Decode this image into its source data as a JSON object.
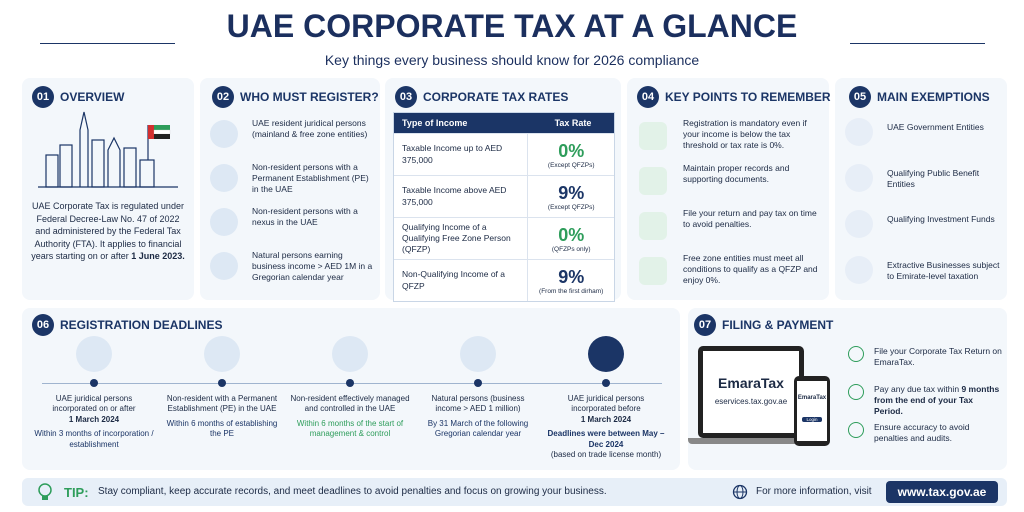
{
  "header": {
    "title": "UAE CORPORATE TAX AT A GLANCE",
    "subtitle": "Key things every business should know for 2026 compliance"
  },
  "overview": {
    "number": "01",
    "title": "OVERVIEW",
    "text": "UAE Corporate Tax is regulated under Federal Decree-Law No. 47 of 2022 and administered by the Federal Tax Authority (FTA). It applies to financial years starting on or after",
    "bold": "1 June 2023."
  },
  "register": {
    "number": "02",
    "title": "WHO MUST REGISTER?",
    "items": [
      "UAE resident juridical persons (mainland & free zone entities)",
      "Non-resident persons with a Permanent Establishment (PE) in the UAE",
      "Non-resident persons with a nexus in the UAE",
      "Natural persons earning business income > AED 1M in a Gregorian calendar year"
    ]
  },
  "rates": {
    "number": "03",
    "title": "CORPORATE TAX RATES",
    "headers": [
      "Type of Income",
      "Tax Rate"
    ],
    "rows": [
      {
        "income": "Taxable Income up to AED 375,000",
        "rate": "0%",
        "note": "(Except QFZPs)"
      },
      {
        "income": "Taxable Income above AED 375,000",
        "rate": "9%",
        "note": "(Except QFZPs)"
      },
      {
        "income": "Qualifying Income of a Qualifying Free Zone Person (QFZP)",
        "rate": "0%",
        "note": "(QFZPs only)"
      },
      {
        "income": "Non-Qualifying Income of a QFZP",
        "rate": "9%",
        "note": "(From the first dirham)"
      }
    ]
  },
  "key_points": {
    "number": "04",
    "title": "KEY POINTS TO REMEMBER",
    "items": [
      "Registration is mandatory even if your income is below the tax threshold or tax rate is 0%.",
      "Maintain proper records and supporting documents.",
      "File your return and pay tax on time to avoid penalties.",
      "Free zone entities must meet all conditions to qualify as a QFZP and enjoy 0%."
    ]
  },
  "exemptions": {
    "number": "05",
    "title": "MAIN EXEMPTIONS",
    "items": [
      "UAE Government Entities",
      "Qualifying Public Benefit Entities",
      "Qualifying Investment Funds",
      "Extractive Businesses subject to Emirate-level taxation"
    ]
  },
  "deadlines": {
    "number": "06",
    "title": "REGISTRATION DEADLINES",
    "items": [
      {
        "who": "UAE juridical persons incorporated on or after",
        "date": "1 March 2024",
        "deadline": "Within 3 months of incorporation / establishment"
      },
      {
        "who": "Non-resident with a Permanent Establishment (PE) in the UAE",
        "deadline": "Within 6 months of establishing the PE"
      },
      {
        "who": "Non-resident effectively managed and controlled in the UAE",
        "deadline": "Within 6 months of the start of management & control"
      },
      {
        "who": "Natural persons (business income > AED 1 million)",
        "deadline": "By 31 March of the following Gregorian calendar year"
      },
      {
        "who": "UAE juridical persons incorporated before",
        "date": "1 March 2024",
        "deadline": "Deadlines were between May – Dec 2024",
        "note": "(based on trade license month)"
      }
    ]
  },
  "filing": {
    "number": "07",
    "title": "FILING & PAYMENT",
    "brand": "EmaraTax",
    "site": "eservices.tax.gov.ae",
    "phone_brand": "EmaraTax",
    "login": "Login",
    "items": [
      {
        "text": "File your Corporate Tax Return on EmaraTax."
      },
      {
        "text": "Pay any due tax within",
        "bold": "9 months from the end of your Tax Period."
      },
      {
        "text": "Ensure accuracy to avoid penalties and audits."
      }
    ]
  },
  "footer": {
    "tip_label": "TIP:",
    "tip": "Stay compliant, keep accurate records, and meet deadlines to avoid penalties and focus on growing your business.",
    "info": "For more information, visit",
    "url": "www.tax.gov.ae"
  }
}
